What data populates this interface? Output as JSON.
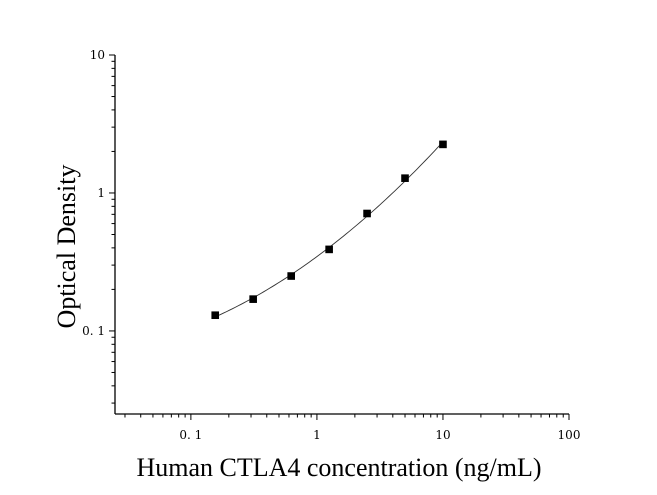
{
  "chart_data": {
    "type": "scatter",
    "title": "",
    "xlabel": "Human CTLA4 concentration (ng/mL)",
    "ylabel": "Optical Density",
    "xscale": "log",
    "yscale": "log",
    "xlim": [
      0.025,
      100
    ],
    "ylim": [
      0.025,
      10
    ],
    "x_ticks": [
      0.1,
      1,
      10,
      100
    ],
    "x_tick_labels": [
      "0. 1",
      "1",
      "10",
      "100"
    ],
    "y_ticks": [
      0.1,
      1,
      10
    ],
    "y_tick_labels": [
      "0. 1",
      "1",
      "10"
    ],
    "grid": false,
    "legend": "none",
    "series": [
      {
        "x": [
          0.156,
          0.312,
          0.625,
          1.25,
          2.5,
          5,
          10
        ],
        "y": [
          0.13,
          0.17,
          0.25,
          0.39,
          0.71,
          1.28,
          2.25
        ],
        "marker": "square",
        "fit_line": true
      }
    ]
  }
}
